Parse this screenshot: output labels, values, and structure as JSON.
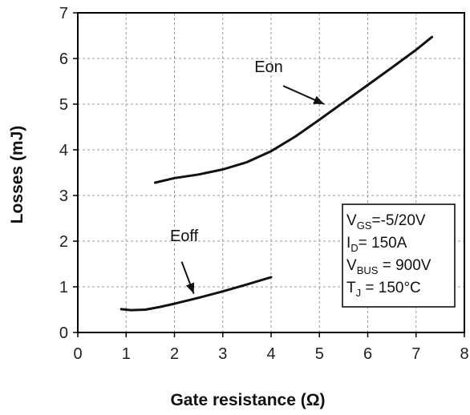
{
  "chart_data": {
    "type": "line",
    "xlabel": "Gate resistance (Ω)",
    "ylabel": "Losses (mJ)",
    "xlim": [
      0,
      8
    ],
    "ylim": [
      0,
      7
    ],
    "x_ticks": [
      "0",
      "1",
      "2",
      "3",
      "4",
      "5",
      "6",
      "7",
      "8"
    ],
    "y_ticks": [
      "0",
      "1",
      "2",
      "3",
      "4",
      "5",
      "6",
      "7"
    ],
    "grid": true,
    "series": [
      {
        "name": "Eon",
        "x": [
          1.6,
          2.0,
          2.5,
          3.0,
          3.5,
          4.0,
          4.5,
          5.0,
          5.5,
          6.0,
          6.5,
          7.0,
          7.33
        ],
        "y": [
          3.28,
          3.38,
          3.46,
          3.57,
          3.73,
          3.97,
          4.29,
          4.66,
          5.04,
          5.42,
          5.8,
          6.19,
          6.47
        ]
      },
      {
        "name": "Eoff",
        "x": [
          0.9,
          1.1,
          1.4,
          1.7,
          2.0,
          2.5,
          3.0,
          3.5,
          4.0
        ],
        "y": [
          0.51,
          0.49,
          0.5,
          0.56,
          0.63,
          0.76,
          0.9,
          1.05,
          1.21
        ]
      }
    ],
    "annotations": [
      {
        "text": "Eon",
        "label_x": 3.95,
        "label_y": 5.7,
        "arrow_from": [
          4.25,
          5.4
        ],
        "arrow_to": [
          5.1,
          5.0
        ]
      },
      {
        "text": "Eoff",
        "label_x": 2.2,
        "label_y": 2.0,
        "arrow_from": [
          2.15,
          1.55
        ],
        "arrow_to": [
          2.4,
          0.85
        ]
      }
    ],
    "legend": {
      "placement": "bottom-right",
      "lines": [
        {
          "main": "V",
          "sub": "GS",
          "rest": "=-5/20V"
        },
        {
          "main": "I",
          "sub": "D",
          "rest": "= 150A"
        },
        {
          "main": "V",
          "sub": "BUS",
          "rest": " = 900V"
        },
        {
          "main": "T",
          "sub": "J",
          "rest": " = 150°C"
        }
      ]
    }
  }
}
